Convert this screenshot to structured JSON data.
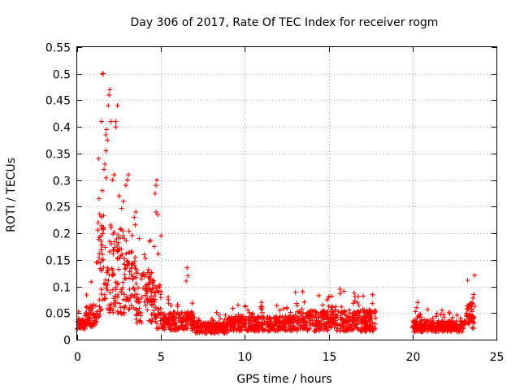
{
  "chart_data": {
    "type": "scatter",
    "title": "Day 306 of 2017, Rate Of TEC Index for receiver rogm",
    "xlabel": "GPS time / hours",
    "ylabel": "ROTI / TECUs",
    "xlim": [
      0,
      25
    ],
    "ylim": [
      0,
      0.55
    ],
    "x_ticks": [
      0,
      5,
      10,
      15,
      20,
      25
    ],
    "x_tick_labels": [
      "0",
      "5",
      "10",
      "15",
      "20",
      "25"
    ],
    "y_ticks": [
      0,
      0.05,
      0.1,
      0.15,
      0.2,
      0.25,
      0.3,
      0.35,
      0.4,
      0.45,
      0.5,
      0.55
    ],
    "y_tick_labels": [
      "0",
      "0.05",
      "0.1",
      "0.15",
      "0.2",
      "0.25",
      "0.3",
      "0.35",
      "0.4",
      "0.45",
      "0.5",
      "0.55"
    ],
    "grid": true,
    "marker": "+",
    "colors": {
      "marker": "#ff0000",
      "grid": "#a0a0a0",
      "axis": "#000000"
    },
    "series": [
      {
        "name": "ROTI",
        "segments": [
          {
            "x_start": 0.0,
            "x_end": 0.5,
            "base": 0.028,
            "spread": 0.012
          },
          {
            "x_start": 0.5,
            "x_end": 1.2,
            "base": 0.045,
            "spread": 0.03
          },
          {
            "x_start": 1.2,
            "x_end": 2.0,
            "base": 0.14,
            "spread": 0.14
          },
          {
            "x_start": 2.0,
            "x_end": 2.8,
            "base": 0.13,
            "spread": 0.12
          },
          {
            "x_start": 2.8,
            "x_end": 3.5,
            "base": 0.11,
            "spread": 0.08
          },
          {
            "x_start": 3.5,
            "x_end": 4.6,
            "base": 0.08,
            "spread": 0.07
          },
          {
            "x_start": 4.6,
            "x_end": 5.0,
            "base": 0.06,
            "spread": 0.06
          },
          {
            "x_start": 5.0,
            "x_end": 7.0,
            "base": 0.035,
            "spread": 0.025
          },
          {
            "x_start": 7.0,
            "x_end": 9.0,
            "base": 0.022,
            "spread": 0.015
          },
          {
            "x_start": 9.0,
            "x_end": 13.0,
            "base": 0.03,
            "spread": 0.02
          },
          {
            "x_start": 13.0,
            "x_end": 17.8,
            "base": 0.035,
            "spread": 0.028
          },
          {
            "x_start": 20.0,
            "x_end": 23.2,
            "base": 0.025,
            "spread": 0.015
          },
          {
            "x_start": 23.2,
            "x_end": 23.7,
            "base": 0.045,
            "spread": 0.035
          }
        ],
        "peaks": [
          {
            "x": 1.5,
            "y": 0.5
          },
          {
            "x": 1.55,
            "y": 0.5
          },
          {
            "x": 1.95,
            "y": 0.47
          },
          {
            "x": 1.9,
            "y": 0.46
          },
          {
            "x": 1.85,
            "y": 0.44
          },
          {
            "x": 2.4,
            "y": 0.44
          },
          {
            "x": 1.45,
            "y": 0.41
          },
          {
            "x": 2.0,
            "y": 0.41
          },
          {
            "x": 2.3,
            "y": 0.41
          },
          {
            "x": 2.3,
            "y": 0.4
          },
          {
            "x": 1.75,
            "y": 0.395
          },
          {
            "x": 1.7,
            "y": 0.385
          },
          {
            "x": 1.8,
            "y": 0.375
          },
          {
            "x": 1.65,
            "y": 0.33
          },
          {
            "x": 1.6,
            "y": 0.32
          },
          {
            "x": 2.2,
            "y": 0.31
          },
          {
            "x": 3.05,
            "y": 0.31
          },
          {
            "x": 2.1,
            "y": 0.3
          },
          {
            "x": 3.0,
            "y": 0.3
          },
          {
            "x": 4.75,
            "y": 0.3
          },
          {
            "x": 2.9,
            "y": 0.29
          },
          {
            "x": 4.7,
            "y": 0.29
          },
          {
            "x": 1.5,
            "y": 0.28
          },
          {
            "x": 2.5,
            "y": 0.27
          },
          {
            "x": 4.65,
            "y": 0.275
          },
          {
            "x": 1.3,
            "y": 0.265
          },
          {
            "x": 2.75,
            "y": 0.26
          },
          {
            "x": 3.5,
            "y": 0.24
          },
          {
            "x": 4.7,
            "y": 0.24
          },
          {
            "x": 4.8,
            "y": 0.235
          },
          {
            "x": 1.25,
            "y": 0.22
          },
          {
            "x": 3.4,
            "y": 0.23
          },
          {
            "x": 3.7,
            "y": 0.19
          },
          {
            "x": 4.3,
            "y": 0.185
          },
          {
            "x": 4.6,
            "y": 0.175
          },
          {
            "x": 1.15,
            "y": 0.145
          },
          {
            "x": 4.0,
            "y": 0.16
          },
          {
            "x": 6.55,
            "y": 0.135
          },
          {
            "x": 6.6,
            "y": 0.12
          },
          {
            "x": 6.5,
            "y": 0.11
          },
          {
            "x": 15.9,
            "y": 0.091
          },
          {
            "x": 23.65,
            "y": 0.085
          },
          {
            "x": 23.6,
            "y": 0.078
          },
          {
            "x": 15.0,
            "y": 0.08
          },
          {
            "x": 14.9,
            "y": 0.075
          },
          {
            "x": 20.3,
            "y": 0.07
          },
          {
            "x": 17.6,
            "y": 0.068
          },
          {
            "x": 9.6,
            "y": 0.065
          },
          {
            "x": 12.5,
            "y": 0.06
          },
          {
            "x": 16.7,
            "y": 0.07
          },
          {
            "x": 20.25,
            "y": 0.06
          }
        ]
      }
    ]
  }
}
